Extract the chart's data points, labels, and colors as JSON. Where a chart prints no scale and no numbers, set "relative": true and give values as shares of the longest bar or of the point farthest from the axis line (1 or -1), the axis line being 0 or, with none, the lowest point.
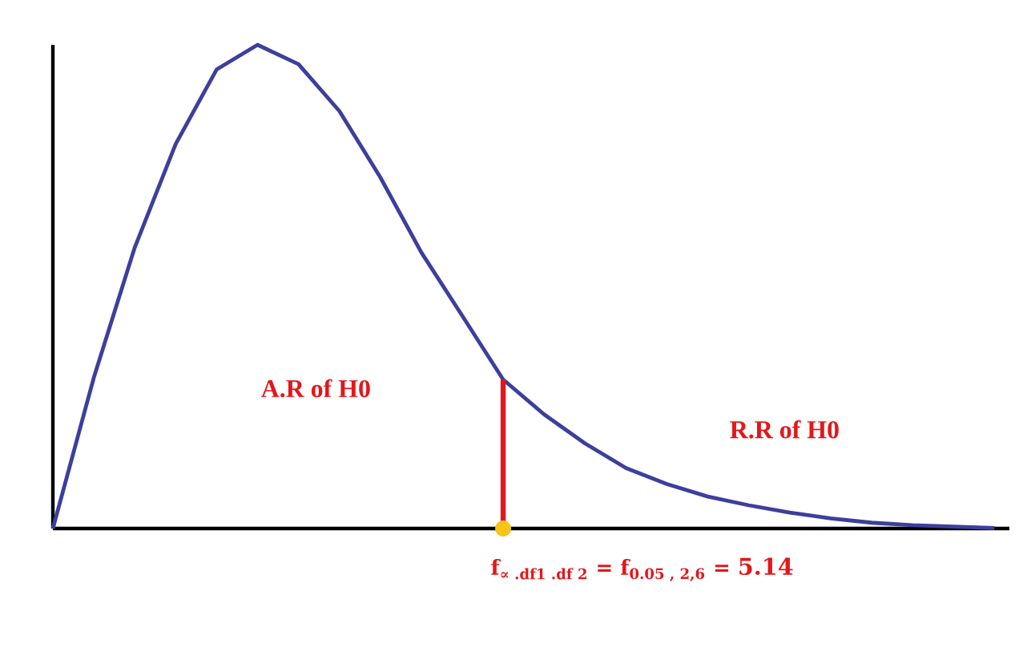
{
  "chart_data": {
    "type": "line",
    "relative": true,
    "categories": [
      null,
      null,
      null,
      null,
      null,
      null,
      null,
      null,
      null,
      null,
      null,
      null,
      null,
      null,
      null,
      null,
      null,
      null,
      null,
      null,
      null,
      null,
      null,
      null
    ],
    "series": [
      {
        "color": "#3c3f9c",
        "values": [
          0,
          0.312,
          0.581,
          0.795,
          0.949,
          1,
          0.96,
          0.863,
          0.726,
          0.571,
          0.44,
          0.308,
          0.236,
          0.176,
          0.125,
          0.092,
          0.066,
          0.048,
          0.033,
          0.021,
          0.012,
          0.007,
          0.004,
          0.001
        ]
      }
    ],
    "tick_labels": false,
    "marker": "none",
    "line_style": "solid",
    "annotations": [
      "A.R of H0",
      "R.R of H0",
      "\\text{f}_{\\text{∝ .df1 .df 2}} \\text{ = f}_{\\text{0.05 , 2,6}} \\text{ = }\\text{\\Large 5.14}"
    ]
  }
}
